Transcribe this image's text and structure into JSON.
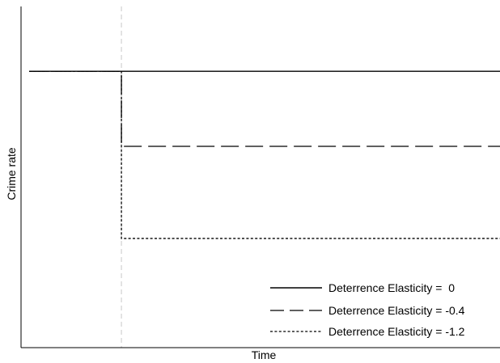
{
  "chart_data": {
    "type": "line",
    "title": "",
    "xlabel": "Time",
    "ylabel": "Crime rate",
    "grid": false,
    "xlim": [
      0,
      10
    ],
    "ylim": [
      0,
      100
    ],
    "legend": {
      "placement": "bottom-right"
    },
    "intervention": {
      "x": 1.96,
      "line_style": "dashed",
      "color": "#c8c8c8"
    },
    "series": [
      {
        "name": "Deterrence Elasticity =  0",
        "line_style": "solid",
        "color": "#000000",
        "points": [
          [
            0,
            81
          ],
          [
            10,
            81
          ]
        ]
      },
      {
        "name": "Deterrence Elasticity = -0.4",
        "line_style": "long-dash",
        "color": "#000000",
        "points": [
          [
            0,
            81
          ],
          [
            1.96,
            81
          ],
          [
            1.96,
            59
          ],
          [
            10,
            59
          ]
        ]
      },
      {
        "name": "Deterrence Elasticity = -1.2",
        "line_style": "dotted",
        "color": "#000000",
        "points": [
          [
            0,
            81
          ],
          [
            1.96,
            81
          ],
          [
            1.96,
            32
          ],
          [
            10,
            32
          ]
        ]
      }
    ]
  }
}
